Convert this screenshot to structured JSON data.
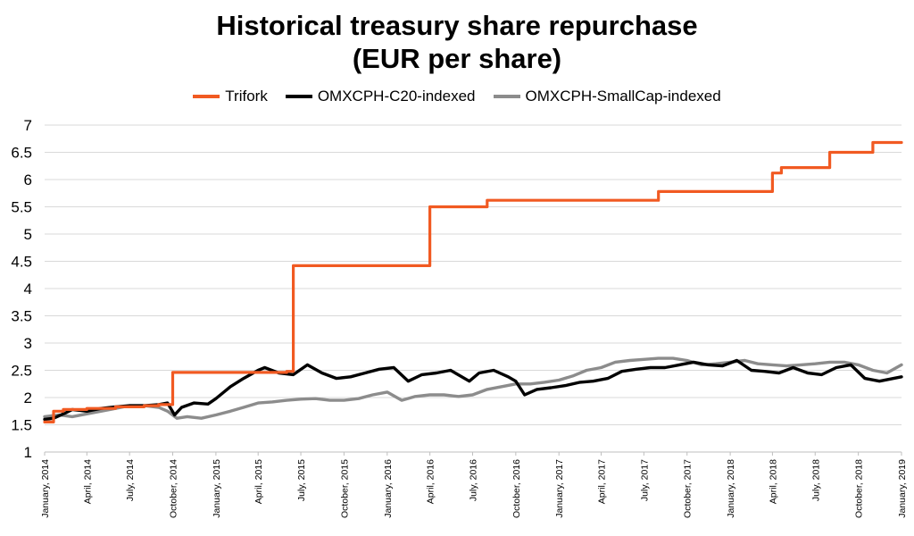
{
  "chart_data": {
    "type": "line",
    "title_lines": [
      "Historical treasury share repurchase",
      "(EUR per share)"
    ],
    "xlabel": "",
    "ylabel": "",
    "ylim": [
      1,
      7
    ],
    "yticks": [
      "1",
      "1.5",
      "2",
      "2.5",
      "3",
      "3.5",
      "4",
      "4.5",
      "5",
      "5.5",
      "6",
      "6.5",
      "7"
    ],
    "xlim": [
      "2014-01-01",
      "2019-01-01"
    ],
    "xticks": [
      {
        "date": "2014-01-01",
        "label": "January, 2014"
      },
      {
        "date": "2014-04-01",
        "label": "April, 2014"
      },
      {
        "date": "2014-07-01",
        "label": "July, 2014"
      },
      {
        "date": "2014-10-01",
        "label": "October, 2014"
      },
      {
        "date": "2015-01-01",
        "label": "January, 2015"
      },
      {
        "date": "2015-04-01",
        "label": "April, 2015"
      },
      {
        "date": "2015-07-01",
        "label": "July, 2015"
      },
      {
        "date": "2015-10-01",
        "label": "October, 2015"
      },
      {
        "date": "2016-01-01",
        "label": "January, 2016"
      },
      {
        "date": "2016-04-01",
        "label": "April, 2016"
      },
      {
        "date": "2016-07-01",
        "label": "July, 2016"
      },
      {
        "date": "2016-10-01",
        "label": "October, 2016"
      },
      {
        "date": "2017-01-01",
        "label": "January, 2017"
      },
      {
        "date": "2017-04-01",
        "label": "April, 2017"
      },
      {
        "date": "2017-07-01",
        "label": "July, 2017"
      },
      {
        "date": "2017-10-01",
        "label": "October, 2017"
      },
      {
        "date": "2018-01-01",
        "label": "January, 2018"
      },
      {
        "date": "2018-04-01",
        "label": "April, 2018"
      },
      {
        "date": "2018-07-01",
        "label": "July, 2018"
      },
      {
        "date": "2018-10-01",
        "label": "October, 2018"
      },
      {
        "date": "2019-01-01",
        "label": "January, 2019"
      }
    ],
    "grid": true,
    "legend_position": "top-center",
    "series": [
      {
        "name": "Trifork",
        "color": "#F15A22",
        "step": true,
        "points": [
          [
            "2014-01-01",
            1.55
          ],
          [
            "2014-01-20",
            1.75
          ],
          [
            "2014-02-10",
            1.78
          ],
          [
            "2014-04-01",
            1.8
          ],
          [
            "2014-06-01",
            1.83
          ],
          [
            "2014-08-01",
            1.85
          ],
          [
            "2014-09-01",
            1.87
          ],
          [
            "2014-10-01",
            2.46
          ],
          [
            "2015-06-01",
            2.48
          ],
          [
            "2015-06-15",
            4.42
          ],
          [
            "2016-04-01",
            5.5
          ],
          [
            "2016-08-01",
            5.62
          ],
          [
            "2017-08-01",
            5.78
          ],
          [
            "2018-04-01",
            6.12
          ],
          [
            "2018-04-20",
            6.22
          ],
          [
            "2018-08-01",
            6.5
          ],
          [
            "2018-11-01",
            6.68
          ],
          [
            "2019-01-01",
            6.68
          ]
        ]
      },
      {
        "name": "OMXCPH-C20-indexed",
        "color": "#000000",
        "step": false,
        "points": [
          [
            "2014-01-01",
            1.6
          ],
          [
            "2014-01-20",
            1.62
          ],
          [
            "2014-02-15",
            1.72
          ],
          [
            "2014-03-01",
            1.78
          ],
          [
            "2014-04-01",
            1.75
          ],
          [
            "2014-05-01",
            1.8
          ],
          [
            "2014-06-01",
            1.83
          ],
          [
            "2014-07-01",
            1.85
          ],
          [
            "2014-08-01",
            1.85
          ],
          [
            "2014-09-01",
            1.87
          ],
          [
            "2014-09-20",
            1.9
          ],
          [
            "2014-10-05",
            1.68
          ],
          [
            "2014-10-20",
            1.82
          ],
          [
            "2014-11-15",
            1.9
          ],
          [
            "2014-12-15",
            1.88
          ],
          [
            "2015-01-01",
            1.98
          ],
          [
            "2015-02-01",
            2.2
          ],
          [
            "2015-03-01",
            2.35
          ],
          [
            "2015-04-01",
            2.5
          ],
          [
            "2015-04-15",
            2.55
          ],
          [
            "2015-05-15",
            2.45
          ],
          [
            "2015-06-15",
            2.42
          ],
          [
            "2015-07-15",
            2.6
          ],
          [
            "2015-08-15",
            2.45
          ],
          [
            "2015-09-15",
            2.35
          ],
          [
            "2015-10-15",
            2.38
          ],
          [
            "2015-11-15",
            2.45
          ],
          [
            "2015-12-15",
            2.52
          ],
          [
            "2016-01-15",
            2.55
          ],
          [
            "2016-02-15",
            2.3
          ],
          [
            "2016-03-15",
            2.42
          ],
          [
            "2016-04-15",
            2.45
          ],
          [
            "2016-05-15",
            2.5
          ],
          [
            "2016-06-24",
            2.3
          ],
          [
            "2016-07-15",
            2.45
          ],
          [
            "2016-08-15",
            2.5
          ],
          [
            "2016-09-15",
            2.38
          ],
          [
            "2016-10-01",
            2.3
          ],
          [
            "2016-10-20",
            2.05
          ],
          [
            "2016-11-15",
            2.15
          ],
          [
            "2016-12-15",
            2.18
          ],
          [
            "2017-01-15",
            2.22
          ],
          [
            "2017-02-15",
            2.28
          ],
          [
            "2017-03-15",
            2.3
          ],
          [
            "2017-04-15",
            2.35
          ],
          [
            "2017-05-15",
            2.48
          ],
          [
            "2017-06-15",
            2.52
          ],
          [
            "2017-07-15",
            2.55
          ],
          [
            "2017-08-15",
            2.55
          ],
          [
            "2017-09-15",
            2.6
          ],
          [
            "2017-10-15",
            2.65
          ],
          [
            "2017-11-15",
            2.6
          ],
          [
            "2017-12-15",
            2.58
          ],
          [
            "2018-01-15",
            2.68
          ],
          [
            "2018-02-15",
            2.5
          ],
          [
            "2018-03-15",
            2.48
          ],
          [
            "2018-04-15",
            2.45
          ],
          [
            "2018-05-15",
            2.55
          ],
          [
            "2018-06-15",
            2.45
          ],
          [
            "2018-07-15",
            2.42
          ],
          [
            "2018-08-15",
            2.55
          ],
          [
            "2018-09-15",
            2.6
          ],
          [
            "2018-10-15",
            2.35
          ],
          [
            "2018-11-15",
            2.3
          ],
          [
            "2018-12-15",
            2.35
          ],
          [
            "2019-01-01",
            2.38
          ]
        ]
      },
      {
        "name": "OMXCPH-SmallCap-indexed",
        "color": "#8C8C8C",
        "step": false,
        "points": [
          [
            "2014-01-01",
            1.65
          ],
          [
            "2014-02-01",
            1.68
          ],
          [
            "2014-03-01",
            1.65
          ],
          [
            "2014-04-01",
            1.7
          ],
          [
            "2014-05-01",
            1.75
          ],
          [
            "2014-06-01",
            1.8
          ],
          [
            "2014-07-01",
            1.85
          ],
          [
            "2014-08-01",
            1.85
          ],
          [
            "2014-09-01",
            1.82
          ],
          [
            "2014-09-20",
            1.75
          ],
          [
            "2014-10-10",
            1.62
          ],
          [
            "2014-11-01",
            1.65
          ],
          [
            "2014-12-01",
            1.62
          ],
          [
            "2015-01-01",
            1.68
          ],
          [
            "2015-02-01",
            1.75
          ],
          [
            "2015-03-01",
            1.82
          ],
          [
            "2015-04-01",
            1.9
          ],
          [
            "2015-05-01",
            1.92
          ],
          [
            "2015-06-01",
            1.95
          ],
          [
            "2015-07-01",
            1.97
          ],
          [
            "2015-08-01",
            1.98
          ],
          [
            "2015-09-01",
            1.95
          ],
          [
            "2015-10-01",
            1.95
          ],
          [
            "2015-11-01",
            1.98
          ],
          [
            "2015-12-01",
            2.05
          ],
          [
            "2016-01-01",
            2.1
          ],
          [
            "2016-02-01",
            1.95
          ],
          [
            "2016-03-01",
            2.02
          ],
          [
            "2016-04-01",
            2.05
          ],
          [
            "2016-05-01",
            2.05
          ],
          [
            "2016-06-01",
            2.02
          ],
          [
            "2016-07-01",
            2.05
          ],
          [
            "2016-08-01",
            2.15
          ],
          [
            "2016-09-01",
            2.2
          ],
          [
            "2016-10-01",
            2.25
          ],
          [
            "2016-11-01",
            2.25
          ],
          [
            "2016-12-01",
            2.28
          ],
          [
            "2017-01-01",
            2.32
          ],
          [
            "2017-02-01",
            2.4
          ],
          [
            "2017-03-01",
            2.5
          ],
          [
            "2017-04-01",
            2.55
          ],
          [
            "2017-05-01",
            2.65
          ],
          [
            "2017-06-01",
            2.68
          ],
          [
            "2017-07-01",
            2.7
          ],
          [
            "2017-08-01",
            2.72
          ],
          [
            "2017-09-01",
            2.72
          ],
          [
            "2017-10-01",
            2.68
          ],
          [
            "2017-11-01",
            2.6
          ],
          [
            "2017-12-01",
            2.62
          ],
          [
            "2018-01-01",
            2.65
          ],
          [
            "2018-02-01",
            2.68
          ],
          [
            "2018-03-01",
            2.62
          ],
          [
            "2018-04-01",
            2.6
          ],
          [
            "2018-05-01",
            2.58
          ],
          [
            "2018-06-01",
            2.6
          ],
          [
            "2018-07-01",
            2.62
          ],
          [
            "2018-08-01",
            2.65
          ],
          [
            "2018-09-01",
            2.65
          ],
          [
            "2018-10-01",
            2.6
          ],
          [
            "2018-11-01",
            2.5
          ],
          [
            "2018-12-01",
            2.45
          ],
          [
            "2019-01-01",
            2.6
          ]
        ]
      }
    ]
  }
}
